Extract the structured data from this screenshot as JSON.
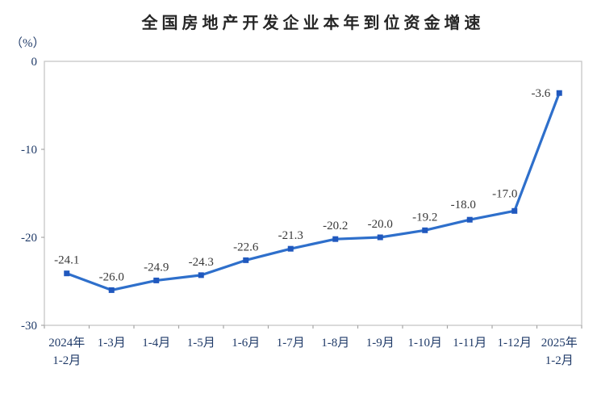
{
  "chart_data": {
    "type": "line",
    "title": "全国房地产开发企业本年到位资金增速",
    "unit_label": "（%）",
    "xlabel": "",
    "ylabel": "（%）",
    "categories": [
      "2024年\n1-2月",
      "1-3月",
      "1-4月",
      "1-5月",
      "1-6月",
      "1-7月",
      "1-8月",
      "1-9月",
      "1-10月",
      "1-11月",
      "1-12月",
      "2025年\n1-2月"
    ],
    "values": [
      -24.1,
      -26.0,
      -24.9,
      -24.3,
      -22.6,
      -21.3,
      -20.2,
      -20.0,
      -19.2,
      -18.0,
      -17.0,
      -3.6
    ],
    "data_labels": [
      "-24.1",
      "-26.0",
      "-24.9",
      "-24.3",
      "-22.6",
      "-21.3",
      "-20.2",
      "-20.0",
      "-19.2",
      "-18.0",
      "-17.0",
      "-3.6"
    ],
    "ylim": [
      -30,
      0
    ],
    "yticks": [
      0,
      -10,
      -20,
      -30
    ],
    "ytick_labels": [
      "0",
      "-10",
      "-20",
      "-30"
    ],
    "grid": false,
    "legend": "none",
    "marker": "square",
    "label_overrides": {
      "9": {
        "dx": -8,
        "dy": -14
      },
      "10": {
        "dx": -12,
        "dy": -17
      },
      "11": {
        "anchor": "end",
        "dx": -11,
        "dy": 5
      }
    },
    "colors": {
      "line": "#2E6FCB",
      "marker": "#2058BE",
      "axis_text": "#1F3A68",
      "data_label_text": "#383838",
      "title_text": "#262626",
      "border": "#C6C6C6",
      "tick": "#A6A6A6"
    }
  }
}
